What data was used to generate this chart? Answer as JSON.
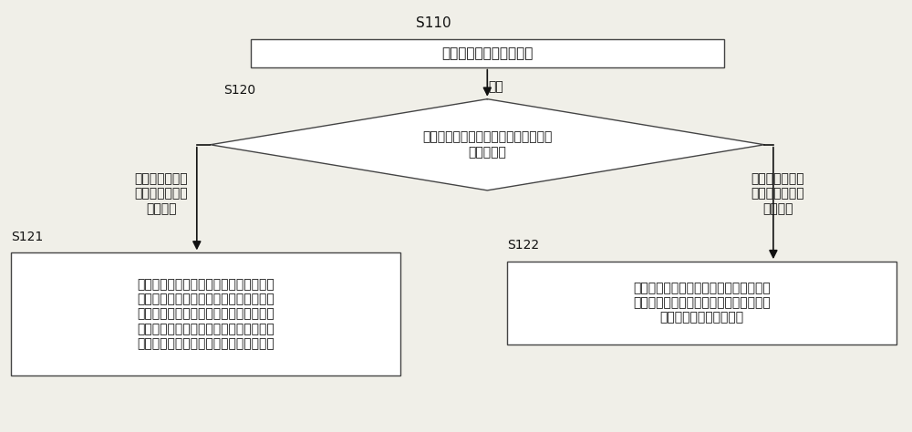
{
  "bg_color": "#f0efe8",
  "box_color": "#ffffff",
  "box_edge": "#444444",
  "text_color": "#111111",
  "arrow_color": "#111111",
  "title_s110": "S110",
  "box1_text": "查找进行中的变更申请单",
  "diamond_label": "S120",
  "diamond_top_text": "检测",
  "diamond_text": "本次晶片批次是否可适用所述进行中的\n变更申请单",
  "left_branch_text": "本次晶片批次为\n第一变更等级的\n晶片批次",
  "right_branch_text": "本次晶片批次为\n第一变更等级的\n晶片批次",
  "s121_label": "S121",
  "s122_label": "S122",
  "box2_text": "检查本次晶片批次是否已被应用于其他变\n更申请单中；若是则更换下一晶片批次继\n续检测或等待本次晶片批次在其他变更申\n请单中应用完毕，若否则选择本次晶片批\n次为所述可适用所述变更申请的晶片批次",
  "box3_text": "当所述本次晶片批次为第二变更等级的晶\n片批次，选择本次晶片批次为所述可适用\n所述变更申请的晶片批次"
}
